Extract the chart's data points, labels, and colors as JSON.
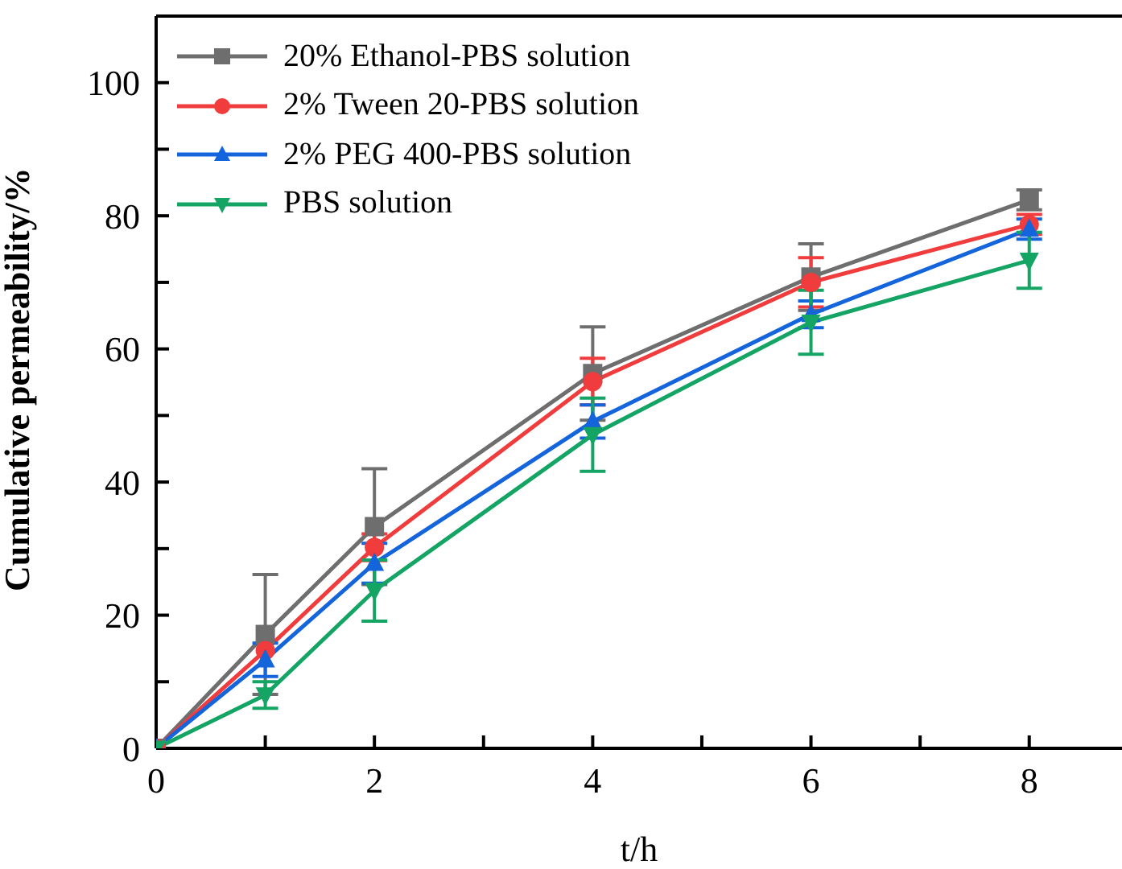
{
  "chart_data": {
    "type": "line",
    "xlabel": "t/h",
    "ylabel": "Cumulative permeability/%",
    "xlim": [
      0,
      8.85
    ],
    "xticks": [
      0,
      {
        "value": 1,
        "label": null
      },
      2,
      {
        "value": 3,
        "label": null
      },
      4,
      {
        "value": 5,
        "label": null
      },
      6,
      {
        "value": 7,
        "label": null
      },
      8
    ],
    "ylim": [
      0,
      110
    ],
    "yticks": [
      0,
      {
        "value": 10,
        "label": null
      },
      20,
      {
        "value": 30,
        "label": null
      },
      40,
      {
        "value": 50,
        "label": null
      },
      60,
      {
        "value": 70,
        "label": null
      },
      80,
      {
        "value": 90,
        "label": null
      },
      100
    ],
    "x": [
      0,
      1,
      2,
      4,
      6,
      8
    ],
    "legend": "top left",
    "line_style": "solid",
    "series": [
      {
        "name": "20% Ethanol-PBS solution",
        "color": "#6e6e6e",
        "marker": "square",
        "values": [
          0,
          17.1,
          33.3,
          56.3,
          70.8,
          82.4
        ],
        "errors": [
          null,
          9,
          8.7,
          7,
          5,
          1.5
        ]
      },
      {
        "name": "2% Tween 20-PBS solution",
        "color": "#f03c3c",
        "marker": "circle",
        "values": [
          0,
          14.7,
          30.2,
          55.1,
          70,
          78.7
        ],
        "errors": [
          null,
          null,
          2,
          3.5,
          3.7,
          1.5
        ]
      },
      {
        "name": "2% PEG 400-PBS solution",
        "color": "#1464dc",
        "marker": "triangle",
        "values": [
          0,
          13.3,
          27.8,
          49.1,
          65.2,
          78
        ],
        "errors": [
          null,
          2.5,
          3,
          2.5,
          2,
          1.5
        ]
      },
      {
        "name": "PBS solution",
        "color": "#14a464",
        "marker": "triangle-down",
        "values": [
          0,
          8,
          23.7,
          47.1,
          64,
          73.3
        ],
        "errors": [
          null,
          2,
          4.6,
          5.5,
          4.8,
          4.2
        ]
      }
    ]
  }
}
